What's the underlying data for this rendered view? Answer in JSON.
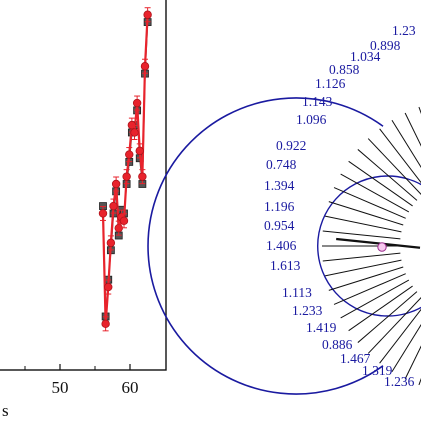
{
  "chart_data": [
    {
      "type": "line",
      "x_tick_labels": [
        "50",
        "60"
      ],
      "x_axis_label_visible_fragment": "s",
      "xlim": [
        0,
        64
      ],
      "ylim": [
        0,
        1
      ],
      "x": [
        40,
        41,
        42,
        43,
        44,
        45,
        46,
        47,
        48,
        49,
        50,
        51,
        52,
        53,
        54,
        55,
        56,
        57
      ],
      "series": [
        {
          "values": [
            0.42,
            0.12,
            0.22,
            0.34,
            0.44,
            0.5,
            0.38,
            0.41,
            0.4,
            0.52,
            0.58,
            0.66,
            0.64,
            0.72,
            0.59,
            0.52,
            0.82,
            0.96
          ],
          "color": "#e8232c",
          "marker": "circle"
        },
        {
          "values": [
            0.44,
            0.14,
            0.24,
            0.32,
            0.42,
            0.48,
            0.36,
            0.43,
            0.42,
            0.5,
            0.56,
            0.64,
            0.66,
            0.7,
            0.57,
            0.5,
            0.8,
            0.94
          ],
          "color": "#555555",
          "marker": "square"
        }
      ],
      "error_bar_color": "#e8232c"
    },
    {
      "type": "radial",
      "labels": [
        "1.23",
        "0.898",
        "1.034",
        "0.858",
        "1.126",
        "1.143",
        "1.096",
        "0.922",
        "0.748",
        "1.394",
        "1.196",
        "0.954",
        "1.406",
        "1.613",
        "1.113",
        "1.233",
        "1.419",
        "0.886",
        "1.467",
        "1.319",
        "1.236"
      ],
      "color": "#1a1aa0"
    }
  ]
}
